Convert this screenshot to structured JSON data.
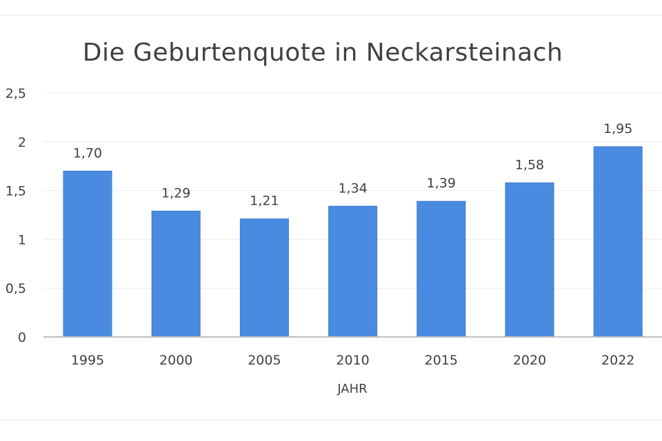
{
  "chart_data": {
    "type": "bar",
    "title": "Die Geburtenquote in Neckarsteinach",
    "xlabel": "JAHR",
    "ylabel": "",
    "categories": [
      "1995",
      "2000",
      "2005",
      "2010",
      "2015",
      "2020",
      "2022"
    ],
    "values": [
      1.7,
      1.29,
      1.21,
      1.34,
      1.39,
      1.58,
      1.95
    ],
    "data_labels": [
      "1,70",
      "1,29",
      "1,21",
      "1,34",
      "1,39",
      "1,58",
      "1,95"
    ],
    "ylim": [
      0,
      2.5
    ],
    "yticks": [
      0,
      0.5,
      1,
      1.5,
      2,
      2.5
    ],
    "ytick_labels": [
      "0",
      "0,5",
      "1",
      "1,5",
      "2",
      "2,5"
    ],
    "grid": true,
    "legend": "none",
    "colors": {
      "bar": "#4a8be2",
      "bar_edge": "#3a78cc",
      "axis": "#bfbfbf",
      "text": "#404040"
    }
  }
}
